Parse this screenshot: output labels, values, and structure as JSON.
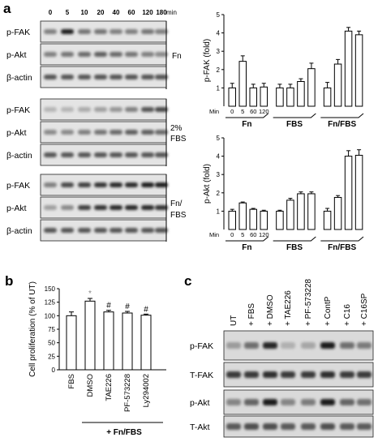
{
  "panels": {
    "a": "a",
    "b": "b",
    "c": "c"
  },
  "panel_a": {
    "time_points": [
      "0",
      "5",
      "10",
      "20",
      "40",
      "60",
      "120",
      "180"
    ],
    "time_unit": "min",
    "blot_groups": [
      {
        "condition": "Fn",
        "rows": [
          "p-FAK",
          "p-Akt",
          "β-actin"
        ]
      },
      {
        "condition": "2% FBS",
        "rows": [
          "p-FAK",
          "p-Akt",
          "β-actin"
        ]
      },
      {
        "condition": "Fn/ FBS",
        "rows": [
          "p-FAK",
          "p-Akt",
          "β-actin"
        ]
      }
    ]
  },
  "panel_c": {
    "lanes": [
      "UT",
      "+ FBS",
      "+ DMSO",
      "+ TAE226",
      "+ PF-573228",
      "+ ContP",
      "+ C16",
      "+ C16SP"
    ],
    "rows": [
      "p-FAK",
      "T-FAK",
      "p-Akt",
      "T-Akt"
    ]
  },
  "chart_data": [
    {
      "type": "bar",
      "ylabel": "p-FAK (fold)",
      "ylim": [
        0,
        5
      ],
      "yticks": [
        "1",
        "2",
        "3",
        "4",
        "5"
      ],
      "xtick_prefix": "Min",
      "categories": [
        "0",
        "5",
        "60",
        "120",
        "",
        "",
        "",
        "",
        "",
        "",
        "",
        ""
      ],
      "groups": [
        "Fn",
        "FBS",
        "Fn/FBS"
      ],
      "values": [
        1.0,
        2.45,
        1.0,
        1.05,
        1.0,
        1.0,
        1.35,
        2.05,
        1.0,
        2.3,
        4.1,
        3.9
      ],
      "errors": [
        0.25,
        0.3,
        0.2,
        0.2,
        0.2,
        0.2,
        0.15,
        0.3,
        0.3,
        0.25,
        0.2,
        0.2
      ]
    },
    {
      "type": "bar",
      "ylabel": "p-Akt (fold)",
      "ylim": [
        0,
        5
      ],
      "yticks": [
        "1",
        "2",
        "3",
        "4",
        "5"
      ],
      "xtick_prefix": "Min",
      "categories": [
        "0",
        "5",
        "60",
        "120",
        "",
        "",
        "",
        "",
        "",
        "",
        "",
        ""
      ],
      "groups": [
        "Fn",
        "FBS",
        "Fn/FBS"
      ],
      "values": [
        1.0,
        1.45,
        1.1,
        1.0,
        1.0,
        1.6,
        1.95,
        1.95,
        1.0,
        1.75,
        4.0,
        4.05
      ],
      "errors": [
        0.1,
        0.05,
        0.05,
        0.05,
        0.05,
        0.1,
        0.1,
        0.1,
        0.15,
        0.1,
        0.3,
        0.3
      ]
    },
    {
      "type": "bar",
      "ylabel": "Cell proliferation (% of UT)",
      "ylim": [
        0,
        150
      ],
      "yticks": [
        "0",
        "25",
        "50",
        "75",
        "100",
        "125",
        "150"
      ],
      "categories": [
        "FBS",
        "DMSO",
        "TAE226",
        "PF-573228",
        "Ly294002"
      ],
      "values": [
        100,
        127,
        107,
        105,
        101
      ],
      "errors": [
        7,
        5,
        3,
        3,
        2
      ],
      "annotations": [
        "",
        "*",
        "#",
        "#",
        "#"
      ],
      "group_label": "+ Fn/FBS"
    }
  ]
}
